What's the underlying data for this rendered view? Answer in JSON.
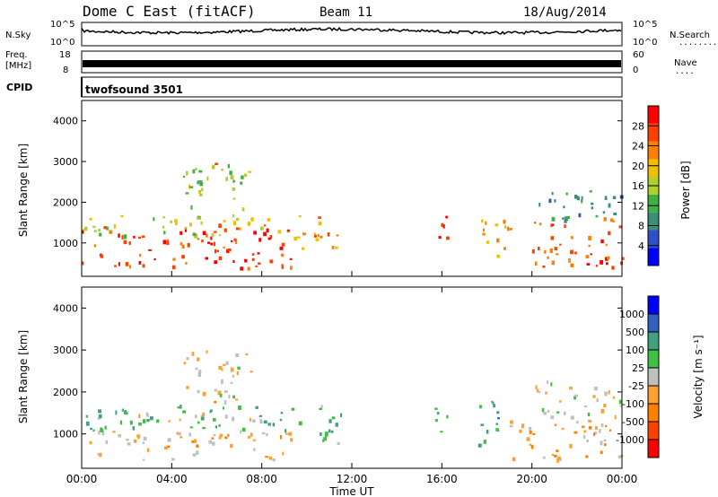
{
  "header": {
    "station": "Dome C East (fitACF)",
    "beam": "Beam 11",
    "date": "18/Aug/2014"
  },
  "side_labels": {
    "nsky": "N.Sky",
    "freq": "Freq.",
    "mhz": "[MHz]",
    "cpid": "CPID",
    "nsearch": "N.Search",
    "nave": "Nave",
    "nsearch_dots": "........",
    "nave_dots": "...."
  },
  "cpid_text": "twofsound 3501",
  "icons": {
    "nsearch_legend": "dotted-line-legend",
    "nave_legend": "dotted-line-legend"
  },
  "colors": {
    "power_scale": [
      "#0000ff",
      "#2f50c8",
      "#3a8f78",
      "#40b040",
      "#b0d030",
      "#f0c000",
      "#ff8000",
      "#ff4000",
      "#ff0000"
    ],
    "velocity_scale": [
      "#ff0000",
      "#ff4000",
      "#ff8000",
      "#ffa030",
      "#c0c0c0",
      "#40c040",
      "#40a080",
      "#3060c0",
      "#0000ff"
    ]
  },
  "chart_data": [
    {
      "type": "line",
      "name": "noise-panel",
      "left_axis": {
        "label": "N.Sky",
        "ticks": [
          "10^5",
          "10^0"
        ]
      },
      "right_axis": {
        "label": "N.Search",
        "ticks": [
          "10^5",
          "10^0"
        ]
      },
      "note": "noise sky trace near 10^3"
    },
    {
      "type": "line",
      "name": "freq-panel",
      "left_axis": {
        "label": "Freq. [MHz]",
        "ticks": [
          "18",
          "8"
        ]
      },
      "right_axis": {
        "label": "Nave",
        "ticks": [
          "60",
          "0"
        ]
      },
      "freq_level": 11
    },
    {
      "type": "heatmap",
      "name": "power-panel",
      "ylabel": "Slant Range [km]",
      "yticks": [
        "1000",
        "2000",
        "3000",
        "4000"
      ],
      "ylim": [
        180,
        4500
      ],
      "colorbar": {
        "label": "Power [dB]",
        "ticks": [
          "4",
          "8",
          "12",
          "16",
          "20",
          "24",
          "28"
        ],
        "range": [
          0,
          30
        ]
      },
      "blobs": [
        {
          "t0": 0,
          "t1": 9.3,
          "r0": 400,
          "r1": 1500,
          "value": 26
        },
        {
          "t0": 0,
          "t1": 9.3,
          "r0": 1200,
          "r1": 1700,
          "value": 16
        },
        {
          "t0": 4.5,
          "t1": 7.5,
          "r0": 1700,
          "r1": 3000,
          "value": 14
        },
        {
          "t0": 5.8,
          "t1": 6.4,
          "r0": 2800,
          "r1": 3100,
          "value": 22
        },
        {
          "t0": 9.3,
          "t1": 11.5,
          "r0": 800,
          "r1": 1700,
          "value": 20
        },
        {
          "t0": 15.5,
          "t1": 16.2,
          "r0": 1000,
          "r1": 1800,
          "value": 26
        },
        {
          "t0": 17.6,
          "t1": 19,
          "r0": 700,
          "r1": 1800,
          "value": 20
        },
        {
          "t0": 20,
          "t1": 24,
          "r0": 400,
          "r1": 1700,
          "value": 24
        },
        {
          "t0": 20,
          "t1": 24,
          "r0": 1500,
          "r1": 2300,
          "value": 9
        }
      ]
    },
    {
      "type": "heatmap",
      "name": "velocity-panel",
      "ylabel": "Slant Range [km]",
      "yticks": [
        "1000",
        "2000",
        "3000",
        "4000"
      ],
      "ylim": [
        180,
        4500
      ],
      "colorbar": {
        "label": "Velocity [m s⁻¹]",
        "ticks": [
          "-1000",
          "-500",
          "-100",
          "-25",
          "25",
          "100",
          "500",
          "1000"
        ],
        "range": [
          -1000,
          1000
        ]
      },
      "blobs": [
        {
          "t0": 0,
          "t1": 9.3,
          "r0": 400,
          "r1": 1100,
          "value": -150
        },
        {
          "t0": 0,
          "t1": 9.3,
          "r0": 1100,
          "r1": 1700,
          "value": 300
        },
        {
          "t0": 2,
          "t1": 8,
          "r0": 1300,
          "r1": 1600,
          "value": 0
        },
        {
          "t0": 4.5,
          "t1": 7.5,
          "r0": 1700,
          "r1": 3000,
          "value": -100
        },
        {
          "t0": 9.3,
          "t1": 11.5,
          "r0": 800,
          "r1": 1700,
          "value": 300
        },
        {
          "t0": 15.5,
          "t1": 16.2,
          "r0": 1000,
          "r1": 1800,
          "value": 300
        },
        {
          "t0": 17.6,
          "t1": 19,
          "r0": 700,
          "r1": 1800,
          "value": 400
        },
        {
          "t0": 19,
          "t1": 24,
          "r0": 400,
          "r1": 1500,
          "value": -200
        },
        {
          "t0": 20,
          "t1": 24,
          "r0": 1500,
          "r1": 2300,
          "value": 0
        }
      ]
    }
  ],
  "xaxis": {
    "label": "Time UT",
    "ticks": [
      "00:00",
      "04:00",
      "08:00",
      "12:00",
      "16:00",
      "20:00",
      "00:00"
    ],
    "range_hours": [
      0,
      24
    ]
  }
}
